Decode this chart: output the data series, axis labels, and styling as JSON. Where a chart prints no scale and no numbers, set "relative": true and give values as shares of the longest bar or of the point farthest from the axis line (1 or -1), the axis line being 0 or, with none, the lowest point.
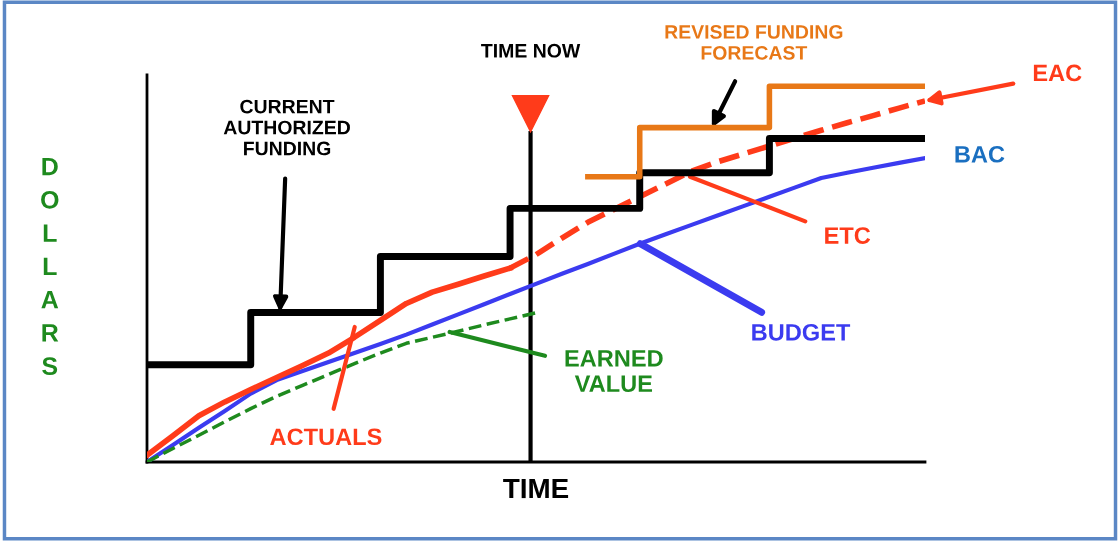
{
  "chart_data": {
    "type": "line",
    "relative": true,
    "xlabel": "TIME",
    "ylabel": "DOLLARS",
    "grid": false,
    "categories": [
      null,
      null,
      null,
      null,
      null,
      null,
      null,
      null,
      null,
      null,
      null,
      null,
      null,
      null,
      null,
      null,
      null,
      null,
      null,
      null,
      null,
      null,
      null,
      null,
      null,
      null,
      null,
      null,
      null,
      null,
      null
    ],
    "series": [
      {
        "type": "step",
        "color": "#000000",
        "values": [
          0.259,
          0.259,
          0.259,
          0.259,
          0.398,
          0.398,
          0.398,
          0.398,
          0.398,
          0.547,
          0.547,
          0.547,
          0.547,
          0.547,
          0.675,
          0.675,
          0.675,
          0.675,
          0.675,
          0.77,
          0.77,
          0.77,
          0.77,
          0.77,
          0.861,
          0.861,
          0.861,
          0.861,
          0.861,
          0.861,
          0.861
        ]
      },
      {
        "type": "step",
        "color": "#e87817",
        "values": [
          null,
          null,
          null,
          null,
          null,
          null,
          null,
          null,
          null,
          null,
          null,
          null,
          null,
          null,
          null,
          null,
          null,
          0.759,
          0.759,
          0.89,
          0.89,
          0.89,
          0.89,
          0.89,
          1.0,
          1.0,
          1.0,
          1.0,
          1.0,
          1.0,
          1.0
        ]
      },
      {
        "color": "#3b3bf0",
        "line_style": "solid",
        "values": [
          0,
          0.045,
          0.091,
          0.136,
          0.182,
          0.218,
          0.242,
          0.266,
          0.29,
          0.314,
          0.339,
          0.366,
          0.393,
          0.42,
          0.447,
          0.474,
          0.501,
          0.527,
          0.554,
          0.581,
          0.606,
          0.631,
          0.656,
          0.681,
          0.706,
          0.731,
          0.756,
          0.77,
          0.783,
          0.796,
          0.809
        ]
      },
      {
        "color": "#1e8a1e",
        "line_style": "dashed",
        "values": [
          0,
          0.036,
          0.071,
          0.107,
          0.142,
          0.175,
          0.204,
          0.233,
          0.262,
          0.29,
          0.316,
          0.332,
          0.348,
          0.365,
          0.381,
          0.397,
          null,
          null,
          null,
          null,
          null,
          null,
          null,
          null,
          null,
          null,
          null,
          null,
          null,
          null,
          null
        ]
      },
      {
        "color": "#ff3b1a",
        "line_style": "solid",
        "values": [
          0.018,
          0.07,
          0.123,
          0.16,
          0.193,
          0.225,
          0.257,
          0.29,
          0.332,
          0.377,
          0.422,
          0.452,
          0.473,
          0.495,
          0.516,
          null,
          null,
          null,
          null,
          null,
          null,
          null,
          null,
          null,
          null,
          null,
          null,
          null,
          null,
          null,
          null
        ]
      },
      {
        "color": "#ff3b1a",
        "line_style": "dashed",
        "values": [
          null,
          null,
          null,
          null,
          null,
          null,
          null,
          null,
          null,
          null,
          null,
          null,
          null,
          null,
          0.516,
          0.552,
          0.596,
          0.638,
          0.672,
          0.706,
          0.74,
          0.774,
          0.799,
          0.82,
          0.841,
          0.862,
          0.883,
          0.903,
          0.922,
          0.942,
          0.961
        ]
      }
    ],
    "annotations": [
      "CURRENT\nAUTHORIZED\nFUNDING",
      "REVISED FUNDING\nFORECAST",
      "EAC",
      "BAC",
      "ETC",
      "BUDGET",
      "EARNED\nVALUE",
      "ACTUALS",
      "TIME NOW"
    ]
  }
}
